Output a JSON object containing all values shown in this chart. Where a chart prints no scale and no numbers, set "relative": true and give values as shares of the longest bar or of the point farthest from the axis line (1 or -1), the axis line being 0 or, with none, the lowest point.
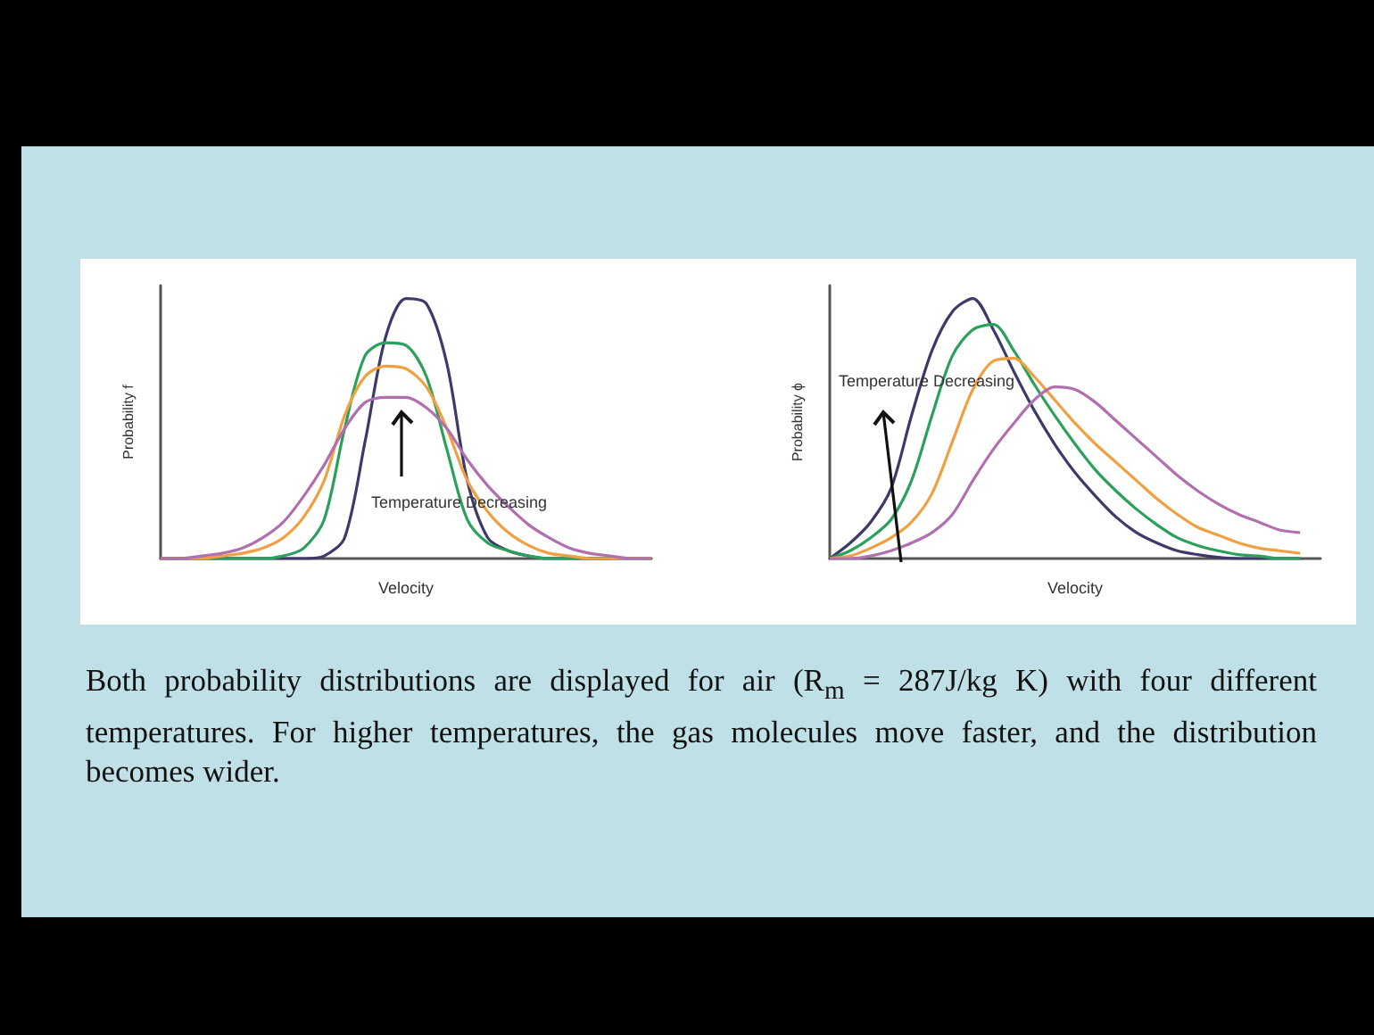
{
  "chart_data": [
    {
      "type": "line",
      "relative": true,
      "xlabel": "Velocity",
      "ylabel": "Probability f",
      "annotations": [
        "Temperature Decreasing",
        "Both probability distributions are displayed for air (R$_{m}$ = 287J/kg K) with four different temperatures. For higher temperatures, the gas molecules move faster, and the distribution becomes wider."
      ],
      "marker": "none",
      "line_style": "solid",
      "categories": [
        null,
        null,
        null,
        null,
        null,
        null,
        null,
        null,
        null,
        null,
        null,
        null,
        null,
        null,
        null,
        null,
        null,
        null,
        null,
        null,
        null,
        null,
        null,
        null,
        null
      ],
      "series": [
        {
          "color": "#3d3a6b",
          "values": [
            0,
            0,
            0,
            0,
            0,
            0,
            0,
            0,
            0.01,
            0.08,
            0.45,
            0.85,
            1.0,
            0.98,
            0.75,
            0.3,
            0.08,
            0.03,
            0.01,
            0,
            0,
            0,
            0,
            0,
            0
          ]
        },
        {
          "color": "#2aa05a",
          "values": [
            0,
            0,
            0,
            0,
            0,
            0,
            0.01,
            0.04,
            0.15,
            0.5,
            0.78,
            0.83,
            0.82,
            0.7,
            0.42,
            0.15,
            0.06,
            0.03,
            0.01,
            0,
            0,
            0,
            0,
            null,
            null
          ]
        },
        {
          "color": "#f0a040",
          "values": [
            0,
            0,
            0,
            0.01,
            0.02,
            0.04,
            0.08,
            0.16,
            0.3,
            0.55,
            0.7,
            0.74,
            0.73,
            0.66,
            0.5,
            0.3,
            0.18,
            0.1,
            0.05,
            0.02,
            0.01,
            0,
            0,
            0,
            0
          ]
        },
        {
          "color": "#b070b0",
          "values": [
            0,
            0,
            0.01,
            0.02,
            0.04,
            0.08,
            0.14,
            0.24,
            0.36,
            0.5,
            0.6,
            0.62,
            0.62,
            0.58,
            0.5,
            0.38,
            0.28,
            0.2,
            0.13,
            0.08,
            0.04,
            0.02,
            0.01,
            0,
            0
          ]
        }
      ]
    },
    {
      "type": "line",
      "relative": true,
      "xlabel": "Velocity",
      "ylabel": "Probability ϕ",
      "annotations": [
        "Temperature Decreasing"
      ],
      "marker": "none",
      "line_style": "solid",
      "categories": [
        null,
        null,
        null,
        null,
        null,
        null,
        null,
        null,
        null,
        null,
        null,
        null,
        null,
        null,
        null,
        null,
        null,
        null,
        null,
        null,
        null,
        null,
        null,
        null,
        null
      ],
      "series": [
        {
          "color": "#3d3a6b",
          "values": [
            0,
            0.06,
            0.14,
            0.27,
            0.55,
            0.8,
            0.95,
            1.0,
            0.88,
            0.72,
            0.57,
            0.44,
            0.33,
            0.24,
            0.16,
            0.1,
            0.06,
            0.03,
            0.015,
            0.005,
            0,
            0,
            0,
            0,
            null
          ]
        },
        {
          "color": "#2aa05a",
          "values": [
            0,
            0.03,
            0.08,
            0.15,
            0.3,
            0.55,
            0.78,
            0.88,
            0.9,
            0.8,
            0.67,
            0.55,
            0.44,
            0.34,
            0.26,
            0.19,
            0.13,
            0.08,
            0.05,
            0.03,
            0.015,
            0.01,
            0,
            0,
            null
          ]
        },
        {
          "color": "#f0a040",
          "values": [
            0,
            0.01,
            0.04,
            0.08,
            0.14,
            0.25,
            0.45,
            0.65,
            0.76,
            0.77,
            0.7,
            0.61,
            0.52,
            0.44,
            0.37,
            0.3,
            0.23,
            0.17,
            0.12,
            0.09,
            0.06,
            0.04,
            0.03,
            0.02,
            null
          ]
        },
        {
          "color": "#b070b0",
          "values": [
            0,
            0,
            0.01,
            0.03,
            0.06,
            0.1,
            0.17,
            0.3,
            0.42,
            0.52,
            0.61,
            0.66,
            0.65,
            0.6,
            0.53,
            0.46,
            0.39,
            0.32,
            0.26,
            0.21,
            0.17,
            0.14,
            0.11,
            0.1,
            null
          ]
        }
      ]
    }
  ]
}
